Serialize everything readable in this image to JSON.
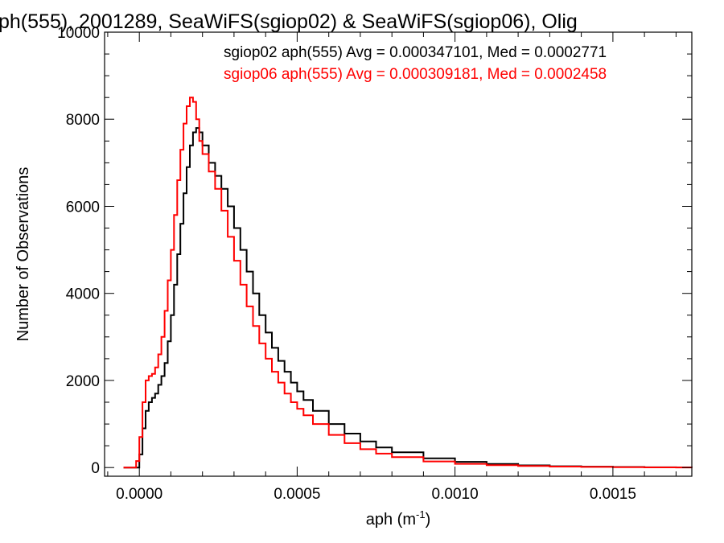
{
  "chart_data": {
    "type": "line",
    "title": "ph(555), 2001289, SeaWiFS(sgiop02) & SeaWiFS(sgiop06), Olig",
    "xlabel": "aph (m",
    "xlabel_sup": "-1",
    "xlabel_close": ")",
    "ylabel": "Number of Observations",
    "xlim": [
      -0.00011,
      0.00175
    ],
    "ylim": [
      -200,
      10000
    ],
    "xticks": [
      0.0,
      0.0005,
      0.001,
      0.0015
    ],
    "xtick_labels": [
      "0.0000",
      "0.0005",
      "0.0010",
      "0.0015"
    ],
    "yticks": [
      0,
      2000,
      4000,
      6000,
      8000,
      10000
    ],
    "ytick_labels": [
      "0",
      "2000",
      "4000",
      "6000",
      "8000",
      "10000"
    ],
    "grid": false,
    "legend_position": "top-right",
    "series": [
      {
        "name": "sgiop02",
        "color": "#000000",
        "x": [
          -5e-05,
          -1e-05,
          0.0,
          1e-05,
          2e-05,
          3e-05,
          4e-05,
          5e-05,
          6e-05,
          7e-05,
          8e-05,
          9e-05,
          0.0001,
          0.00011,
          0.00012,
          0.00013,
          0.00014,
          0.00015,
          0.00016,
          0.00017,
          0.00018,
          0.00019,
          0.0002,
          0.00022,
          0.00024,
          0.00026,
          0.00028,
          0.0003,
          0.00032,
          0.00034,
          0.00036,
          0.00038,
          0.0004,
          0.00042,
          0.00044,
          0.00046,
          0.00048,
          0.0005,
          0.00052,
          0.00055,
          0.0006,
          0.00065,
          0.0007,
          0.00075,
          0.0008,
          0.0009,
          0.001,
          0.0011,
          0.0012,
          0.0013,
          0.0014,
          0.0015,
          0.0016,
          0.0017,
          0.00175
        ],
        "y": [
          0,
          0,
          300,
          900,
          1300,
          1500,
          1600,
          1700,
          1900,
          2100,
          2400,
          2900,
          3500,
          4200,
          4900,
          5600,
          6300,
          6900,
          7400,
          7700,
          7800,
          7700,
          7400,
          7000,
          6700,
          6400,
          6000,
          5500,
          5000,
          4500,
          4000,
          3500,
          3100,
          2750,
          2450,
          2200,
          1950,
          1750,
          1550,
          1300,
          1000,
          780,
          600,
          460,
          350,
          210,
          130,
          80,
          50,
          30,
          20,
          12,
          6,
          3,
          0
        ]
      },
      {
        "name": "sgiop06",
        "color": "#ff0000",
        "x": [
          -5e-05,
          -2e-05,
          -1e-05,
          0.0,
          1e-05,
          2e-05,
          3e-05,
          4e-05,
          5e-05,
          6e-05,
          7e-05,
          8e-05,
          9e-05,
          0.0001,
          0.00011,
          0.00012,
          0.00013,
          0.00014,
          0.00015,
          0.00016,
          0.00017,
          0.00018,
          0.00019,
          0.0002,
          0.00022,
          0.00024,
          0.00026,
          0.00028,
          0.0003,
          0.00032,
          0.00034,
          0.00036,
          0.00038,
          0.0004,
          0.00042,
          0.00044,
          0.00046,
          0.00048,
          0.0005,
          0.00052,
          0.00055,
          0.0006,
          0.00065,
          0.0007,
          0.00075,
          0.0008,
          0.0009,
          0.001,
          0.0011,
          0.0012,
          0.0013,
          0.0014,
          0.0015,
          0.0016,
          0.0017,
          0.00175
        ],
        "y": [
          0,
          0,
          150,
          700,
          1500,
          2000,
          2100,
          2150,
          2300,
          2600,
          3000,
          3600,
          4300,
          5000,
          5800,
          6600,
          7300,
          7900,
          8300,
          8500,
          8400,
          8000,
          7500,
          7200,
          6800,
          6400,
          5900,
          5300,
          4750,
          4200,
          3700,
          3250,
          2850,
          2500,
          2200,
          1950,
          1700,
          1500,
          1350,
          1200,
          1000,
          750,
          560,
          420,
          320,
          240,
          140,
          85,
          55,
          35,
          22,
          14,
          8,
          4,
          2,
          0
        ]
      }
    ],
    "annotations": [
      {
        "text": "sgiop02 aph(555) Avg = 0.000347101, Med = 0.0002771",
        "color": "#000000"
      },
      {
        "text": "sgiop06 aph(555) Avg = 0.000309181, Med = 0.0002458",
        "color": "#ff0000"
      }
    ]
  }
}
